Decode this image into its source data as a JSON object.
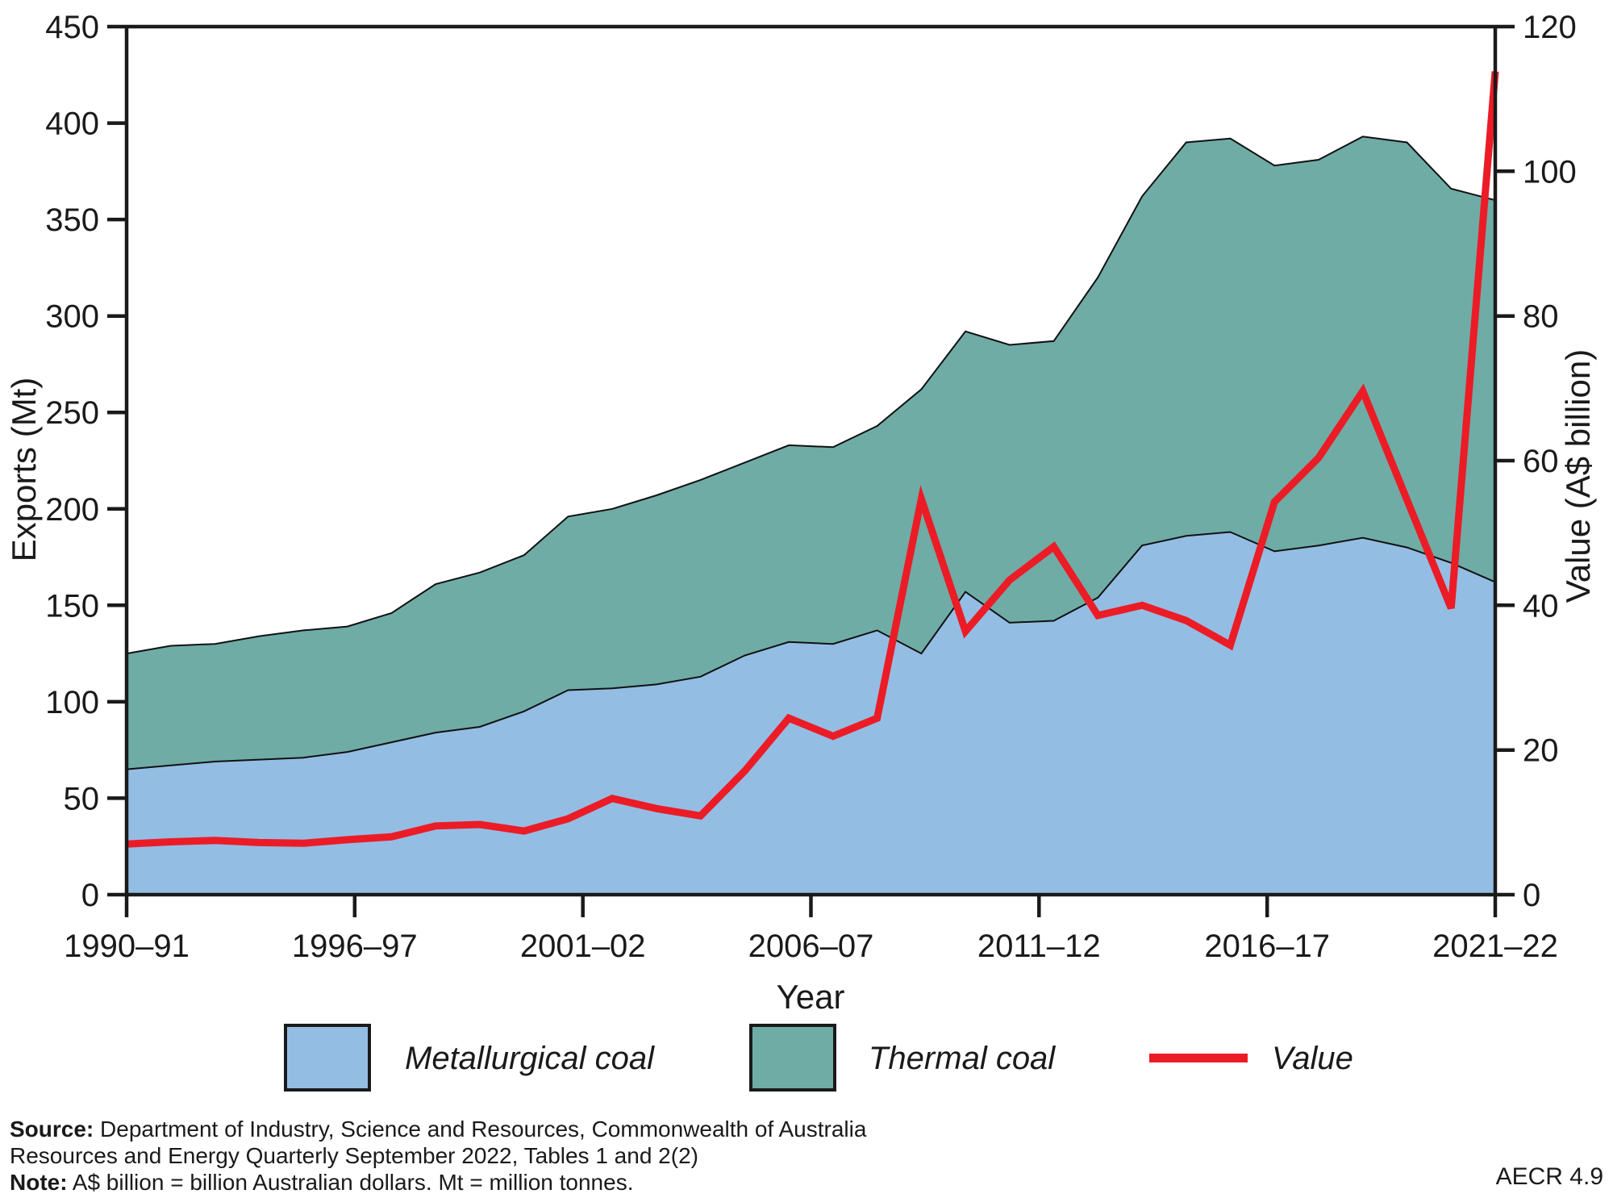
{
  "figure_code": "AECR 4.9",
  "axes": {
    "left_title": "Exports (Mt)",
    "right_title": "Value (A$ billion)",
    "x_title": "Year",
    "left_ticks": [
      0,
      50,
      100,
      150,
      200,
      250,
      300,
      350,
      400,
      450
    ],
    "right_ticks": [
      0,
      20,
      40,
      60,
      80,
      100,
      120
    ],
    "x_tick_labels": [
      "1990–91",
      "1996–97",
      "2001–02",
      "2006–07",
      "2011–12",
      "2016–17",
      "2021–22"
    ]
  },
  "legend": [
    {
      "label": "Metallurgical coal",
      "swatch_color": "#94BDE4",
      "type": "area"
    },
    {
      "label": "Thermal coal",
      "swatch_color": "#6FACA6",
      "type": "area"
    },
    {
      "label": "Value",
      "swatch_color": "#EB1C26",
      "type": "line"
    }
  ],
  "footer": {
    "source_label": "Source:",
    "source_rest": " Department of Industry, Science and Resources, Commonwealth of Australia",
    "line2": "Resources and Energy Quarterly September 2022, Tables 1 and 2(2)",
    "note_label": "Note:",
    "note_rest": " A$ billion = billion Australian dollars. Mt = million tonnes."
  },
  "chart_data": {
    "type": "combo-stacked-area-line",
    "xlabel": "Year",
    "ylabel_left": "Exports (Mt)",
    "ylabel_right": "Value (A$ billion)",
    "ylim_left": [
      0,
      450
    ],
    "ylim_right": [
      0,
      120
    ],
    "grid": false,
    "legend_position": "bottom",
    "categories": [
      "1990–91",
      "1991–92",
      "1992–93",
      "1993–94",
      "1994–95",
      "1995–96",
      "1996–97",
      "1997–98",
      "1998–99",
      "1999–00",
      "2000–01",
      "2001–02",
      "2002–03",
      "2003–04",
      "2004–05",
      "2005–06",
      "2006–07",
      "2007–08",
      "2008–09",
      "2009–10",
      "2010–11",
      "2011–12",
      "2012–13",
      "2013–14",
      "2014–15",
      "2015–16",
      "2016–17",
      "2017–18",
      "2018–19",
      "2019–20",
      "2020–21",
      "2021–22"
    ],
    "series": [
      {
        "id": "met",
        "name": "Metallurgical coal",
        "axis": "left",
        "units": "Mt",
        "color": "#94BDE4",
        "values": [
          65,
          67,
          69,
          70,
          71,
          74,
          79,
          84,
          87,
          95,
          106,
          107,
          109,
          113,
          124,
          131,
          130,
          137,
          125,
          157,
          141,
          142,
          154,
          181,
          186,
          188,
          178,
          181,
          185,
          180,
          172,
          162
        ]
      },
      {
        "id": "thermal",
        "name": "Thermal coal",
        "axis": "left",
        "units": "Mt",
        "color": "#6FACA6",
        "values": [
          60,
          62,
          61,
          64,
          66,
          65,
          67,
          77,
          80,
          81,
          90,
          93,
          98,
          102,
          100,
          102,
          102,
          106,
          137,
          135,
          144,
          145,
          166,
          181,
          204,
          204,
          200,
          200,
          208,
          210,
          194,
          198
        ]
      }
    ],
    "line": {
      "id": "value",
      "name": "Value",
      "axis": "right",
      "units": "A$ billion",
      "color": "#EB1C26",
      "values": [
        7.0,
        7.3,
        7.5,
        7.2,
        7.1,
        7.6,
        8.0,
        9.5,
        9.7,
        8.8,
        10.5,
        13.3,
        11.9,
        10.9,
        17.1,
        24.4,
        21.9,
        24.4,
        54.7,
        36.4,
        43.5,
        48.1,
        38.6,
        40.0,
        37.9,
        34.5,
        54.3,
        60.4,
        69.6,
        54.6,
        39.6,
        113.8
      ]
    }
  }
}
